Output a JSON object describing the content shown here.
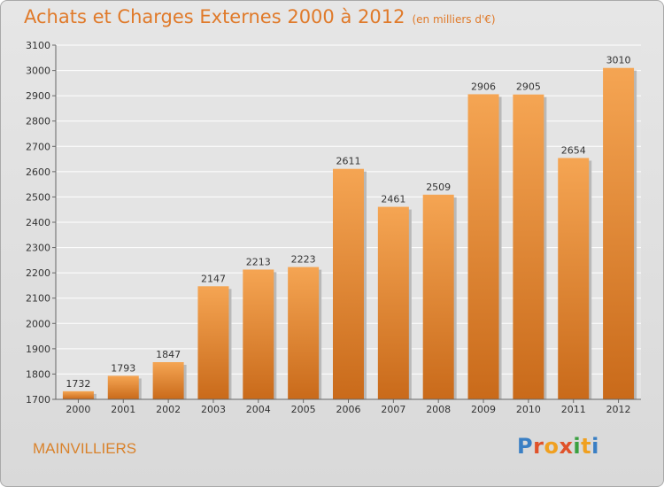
{
  "title": "Achats et Charges Externes 2000 à 2012",
  "subtitle": "(en milliers d'€)",
  "city": "MAINVILLIERS",
  "logo": "Proxiti",
  "colors": {
    "bar_top": "#f5a553",
    "bar_bottom": "#c96a1a",
    "title": "#e07a2a"
  },
  "chart_data": {
    "type": "bar",
    "categories": [
      "2000",
      "2001",
      "2002",
      "2003",
      "2004",
      "2005",
      "2006",
      "2007",
      "2008",
      "2009",
      "2010",
      "2011",
      "2012"
    ],
    "values": [
      1732,
      1793,
      1847,
      2147,
      2213,
      2223,
      2611,
      2461,
      2509,
      2906,
      2905,
      2654,
      3010
    ],
    "ylim": [
      1700,
      3100
    ],
    "yticks": [
      1700,
      1800,
      1900,
      2000,
      2100,
      2200,
      2300,
      2400,
      2500,
      2600,
      2700,
      2800,
      2900,
      3000,
      3100
    ],
    "grid": true,
    "xlabel": "",
    "ylabel": ""
  }
}
